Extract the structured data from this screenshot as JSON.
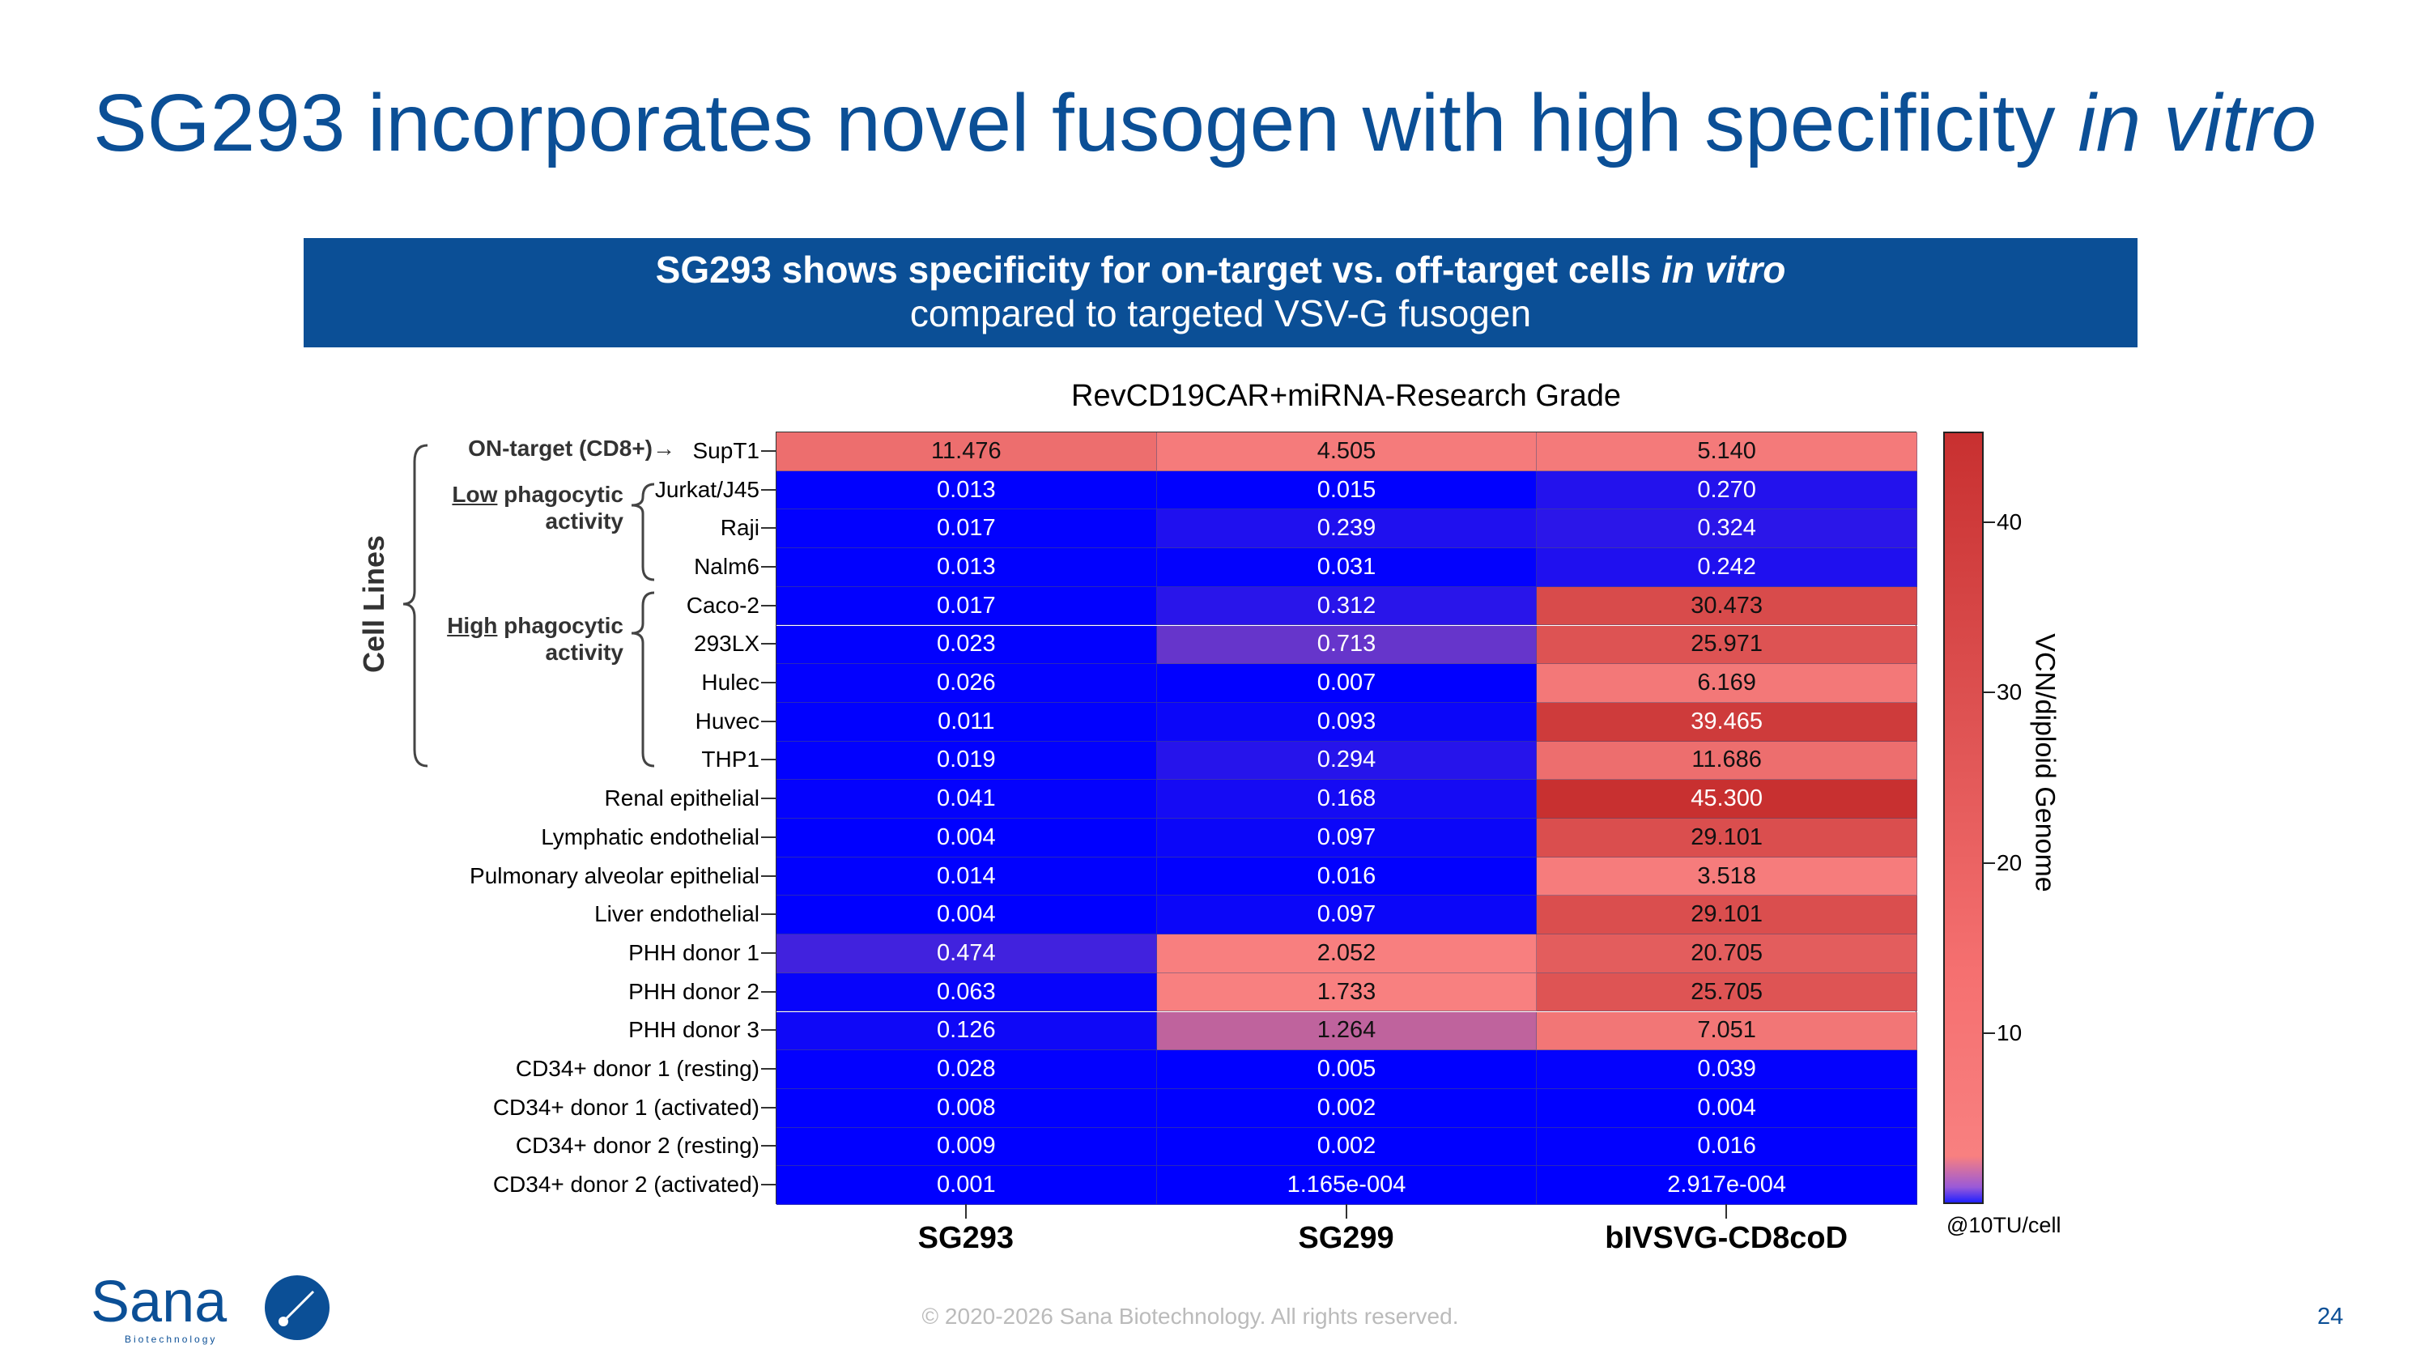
{
  "title": {
    "main": "SG293 incorporates novel fusogen with high specificity ",
    "italic": "in vitro"
  },
  "banner": {
    "line1_main": "SG293 shows specificity for on-target vs. off-target cells ",
    "line1_italic": "in vitro",
    "line2": "compared to targeted VSV-G fusogen"
  },
  "annotations": {
    "cell_lines": "Cell Lines",
    "on_target": "ON-target (CD8+)→",
    "low_u": "Low",
    "low_rest": " phagocytic",
    "low_line2": "activity",
    "high_u": "High",
    "high_rest": " phagocytic",
    "high_line2": "activity"
  },
  "chart_data": {
    "type": "heatmap",
    "title": "RevCD19CAR+miRNA-Research Grade",
    "columns": [
      "SG293",
      "SG299",
      "bIVSVG-CD8coD"
    ],
    "rows": [
      "SupT1",
      "Jurkat/J45",
      "Raji",
      "Nalm6",
      "Caco-2",
      "293LX",
      "Hulec",
      "Huvec",
      "THP1",
      "Renal epithelial",
      "Lymphatic endothelial",
      "Pulmonary alveolar epithelial",
      "Liver endothelial",
      "PHH donor 1",
      "PHH donor 2",
      "PHH donor 3",
      "CD34+ donor 1 (resting)",
      "CD34+ donor 1 (activated)",
      "CD34+ donor 2 (resting)",
      "CD34+ donor 2 (activated)"
    ],
    "values": [
      [
        "11.476",
        "4.505",
        "5.140"
      ],
      [
        "0.013",
        "0.015",
        "0.270"
      ],
      [
        "0.017",
        "0.239",
        "0.324"
      ],
      [
        "0.013",
        "0.031",
        "0.242"
      ],
      [
        "0.017",
        "0.312",
        "30.473"
      ],
      [
        "0.023",
        "0.713",
        "25.971"
      ],
      [
        "0.026",
        "0.007",
        "6.169"
      ],
      [
        "0.011",
        "0.093",
        "39.465"
      ],
      [
        "0.019",
        "0.294",
        "11.686"
      ],
      [
        "0.041",
        "0.168",
        "45.300"
      ],
      [
        "0.004",
        "0.097",
        "29.101"
      ],
      [
        "0.014",
        "0.016",
        "3.518"
      ],
      [
        "0.004",
        "0.097",
        "29.101"
      ],
      [
        "0.474",
        "2.052",
        "20.705"
      ],
      [
        "0.063",
        "1.733",
        "25.705"
      ],
      [
        "0.126",
        "1.264",
        "7.051"
      ],
      [
        "0.028",
        "0.005",
        "0.039"
      ],
      [
        "0.008",
        "0.002",
        "0.004"
      ],
      [
        "0.009",
        "0.002",
        "0.016"
      ],
      [
        "0.001",
        "1.165e-004",
        "2.917e-004"
      ]
    ],
    "colorbar": {
      "label": "VCN/diploid Genome",
      "ticks": [
        "10",
        "20",
        "30",
        "40"
      ],
      "range": [
        0,
        45.3
      ],
      "unit_note": "@10TU/cell",
      "colors": {
        "low": "#0000ff",
        "mid": "#f88080",
        "high": "#c83030"
      }
    }
  },
  "footer": {
    "logo": "Sana Biotechnology",
    "copyright": "© 2020-2026 Sana Biotechnology. All rights reserved.",
    "page": "24"
  },
  "colors": {
    "brand": "#0b4f96"
  }
}
